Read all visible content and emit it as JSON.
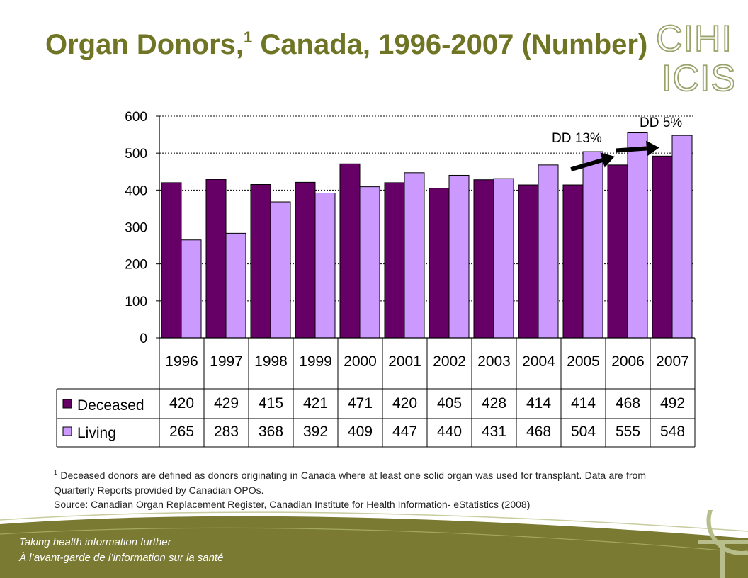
{
  "title": {
    "text": "Organ Donors,",
    "footnote_mark": "1",
    "text_after": " Canada, 1996-2007 (Number)"
  },
  "logo": {
    "line1": "CIHI",
    "line2": "ICIS"
  },
  "chart_data": {
    "type": "bar",
    "categories": [
      "1996",
      "1997",
      "1998",
      "1999",
      "2000",
      "2001",
      "2002",
      "2003",
      "2004",
      "2005",
      "2006",
      "2007"
    ],
    "series": [
      {
        "name": "Deceased",
        "values": [
          420,
          429,
          415,
          421,
          471,
          420,
          405,
          428,
          414,
          414,
          468,
          492
        ],
        "color": "#660066"
      },
      {
        "name": "Living",
        "values": [
          265,
          283,
          368,
          392,
          409,
          447,
          440,
          431,
          468,
          504,
          555,
          548
        ],
        "color": "#cc99ff"
      }
    ],
    "ylim": [
      0,
      600
    ],
    "yticks": [
      0,
      100,
      200,
      300,
      400,
      500,
      600
    ],
    "grid": true,
    "data_table": true,
    "annotations": [
      {
        "text": "DD 13%",
        "from_year": "2005",
        "to_year": "2006"
      },
      {
        "text": "DD 5%",
        "from_year": "2006",
        "to_year": "2007"
      }
    ]
  },
  "footnote": {
    "mark": "1",
    "text": "Deceased donors are defined as donors originating in Canada where at least one solid organ was used for transplant. Data are from Quarterly Reports provided by Canadian OPOs."
  },
  "source": "Source: Canadian Organ Replacement Register, Canadian Institute for Health Information- eStatistics (2008)",
  "tagline": {
    "en": "Taking health information further",
    "fr": "À l’avant-garde de l’information sur la santé"
  },
  "colors": {
    "title": "#6f7524",
    "banner": "#7a7a33",
    "logo": "#9aa36b"
  }
}
